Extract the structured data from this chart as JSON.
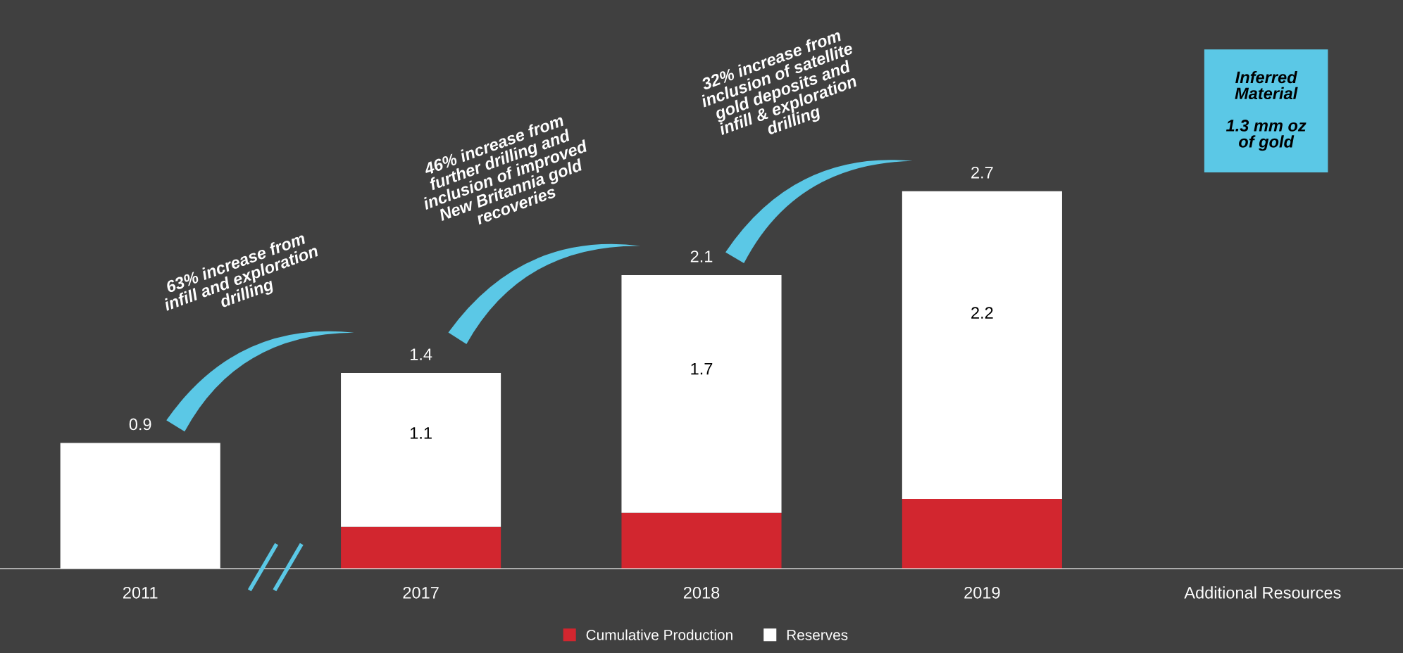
{
  "chart_data": {
    "type": "bar",
    "stacked": true,
    "categories": [
      "2011",
      "2017",
      "2018",
      "2019",
      "Additional Resources"
    ],
    "series": [
      {
        "name": "Cumulative Production",
        "color": "#d2262f",
        "values": [
          null,
          0.3,
          0.4,
          0.5,
          null
        ]
      },
      {
        "name": "Reserves",
        "color": "#ffffff",
        "values": [
          0.9,
          1.1,
          1.7,
          2.2,
          null
        ],
        "value_labels": [
          null,
          "1.1",
          "1.7",
          "2.2",
          null
        ]
      }
    ],
    "totals": [
      "0.9",
      "1.4",
      "2.1",
      "2.7",
      null
    ],
    "annotations": [
      "63% increase from\ninfill and exploration\ndrilling",
      "46% increase from\nfurther drilling and\ninclusion of improved\nNew Britannia gold\nrecoveries",
      "32% increase from\ninclusion of satellite\ngold deposits and\ninfill & exploration\ndrilling",
      "Inferred\nMaterial\n\n1.3 mm oz\nof gold"
    ],
    "legend": "bottom",
    "grid": false,
    "tick_labels": "x"
  }
}
